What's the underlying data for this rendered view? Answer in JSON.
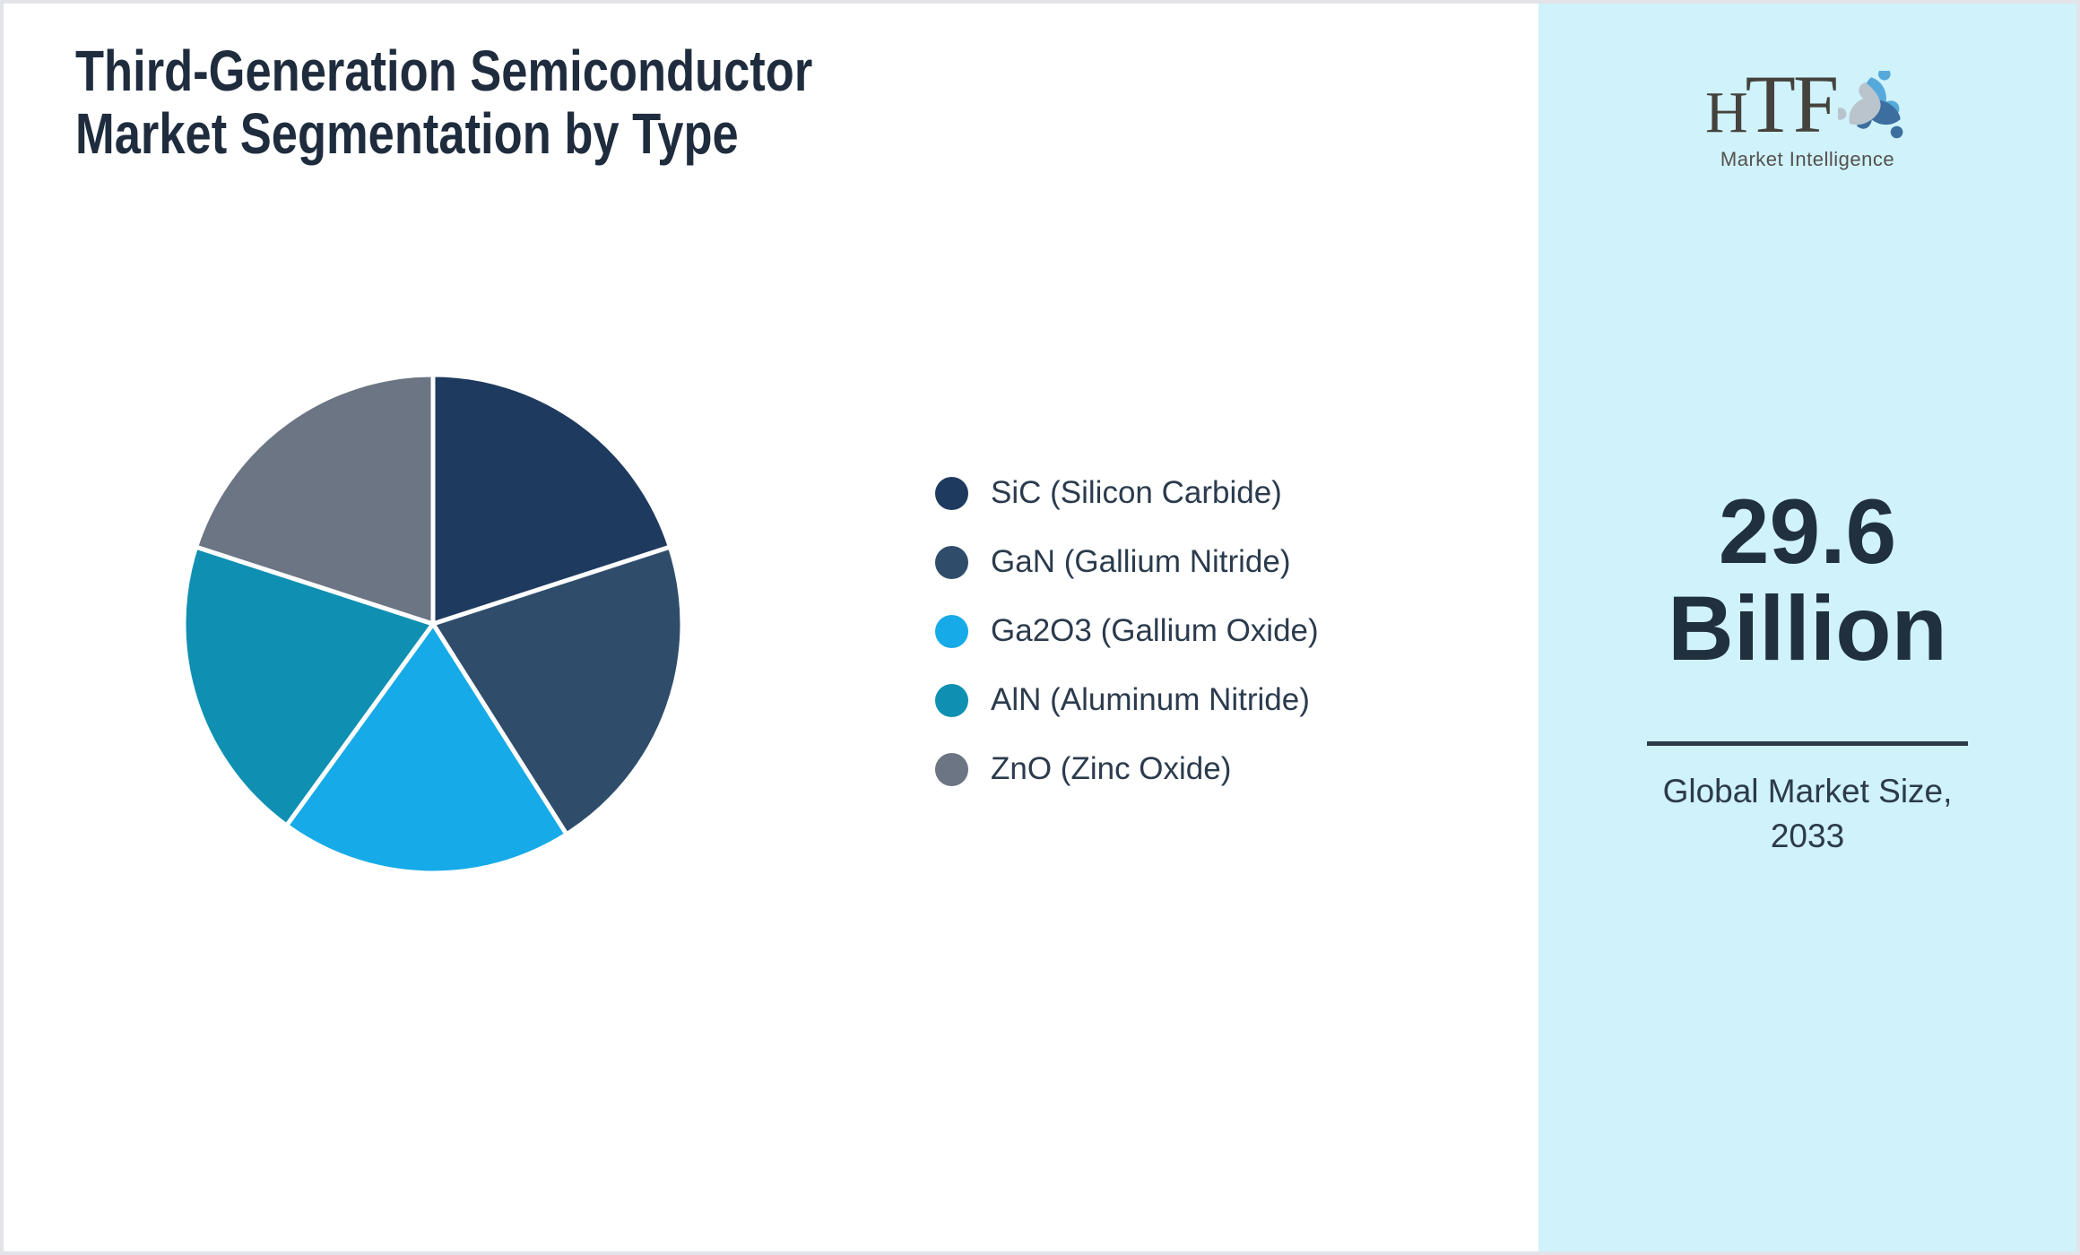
{
  "page": {
    "title_line1": "Third-Generation Semiconductor",
    "title_line2": "Market Segmentation by Type"
  },
  "chart_data": {
    "type": "pie",
    "title": "Third-Generation Semiconductor Market Segmentation by Type",
    "start_angle_deg": 0,
    "direction": "clockwise",
    "legend_position": "right",
    "units": "percent (estimated from slice angles, no data labels shown)",
    "segments": [
      {
        "label": "SiC (Silicon Carbide)",
        "value": 20,
        "color": "#1e3a5f"
      },
      {
        "label": "GaN (Gallium Nitride)",
        "value": 21,
        "color": "#2f4d6b"
      },
      {
        "label": "Ga2O3 (Gallium Oxide)",
        "value": 19,
        "color": "#16aae8"
      },
      {
        "label": "AlN (Aluminum Nitride)",
        "value": 20,
        "color": "#0f90b2"
      },
      {
        "label": "ZnO (Zinc Oxide)",
        "value": 20,
        "color": "#6c7584"
      }
    ]
  },
  "sidebar": {
    "logo": {
      "brand": "HTF",
      "tagline": "Market Intelligence"
    },
    "stat": {
      "value": "29.6",
      "unit": "Billion",
      "caption_line1": "Global Market Size,",
      "caption_line2": "2033"
    }
  },
  "colors": {
    "sidebar_background": "#cff2fb",
    "page_border": "#e2e4ea",
    "title_text": "#1f2c3e",
    "legend_text": "#2b3b4d",
    "stat_text": "#20303f",
    "divider": "#2c3a49",
    "pie_separator": "#ffffff",
    "logo_light_blue": "#56a9db",
    "logo_steel_blue": "#3c6f9f",
    "logo_gray": "#b9c4cd"
  }
}
